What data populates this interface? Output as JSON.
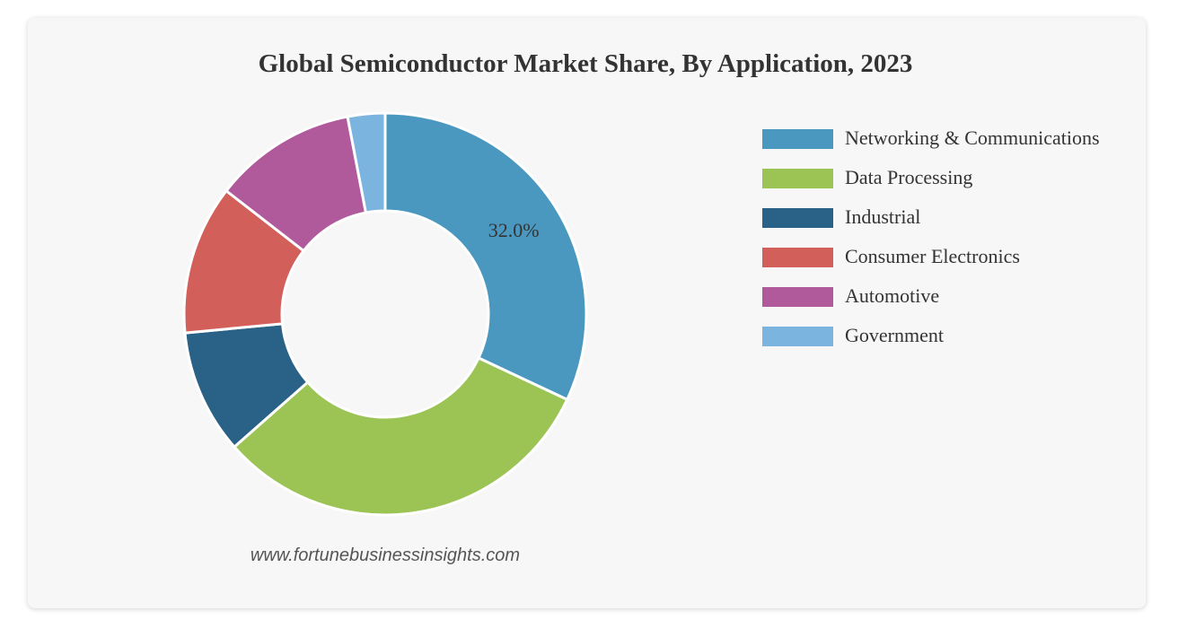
{
  "chart_data": {
    "type": "donut",
    "title": "Global Semiconductor Market Share, By Application, 2023",
    "categories": [
      "Networking & Communications",
      "Data Processing",
      "Industrial",
      "Consumer Electronics",
      "Automotive",
      "Government"
    ],
    "values": [
      32.0,
      31.5,
      10.0,
      12.0,
      11.5,
      3.0
    ],
    "value_labels": [
      "32.0%",
      null,
      null,
      null,
      null,
      null
    ],
    "colors": [
      "#4a98c0",
      "#9bc455",
      "#2a6186",
      "#d35f5a",
      "#b05a9c",
      "#7cb4e0"
    ],
    "legend": "right",
    "source": "www.fortunebusinessinsights.com"
  }
}
